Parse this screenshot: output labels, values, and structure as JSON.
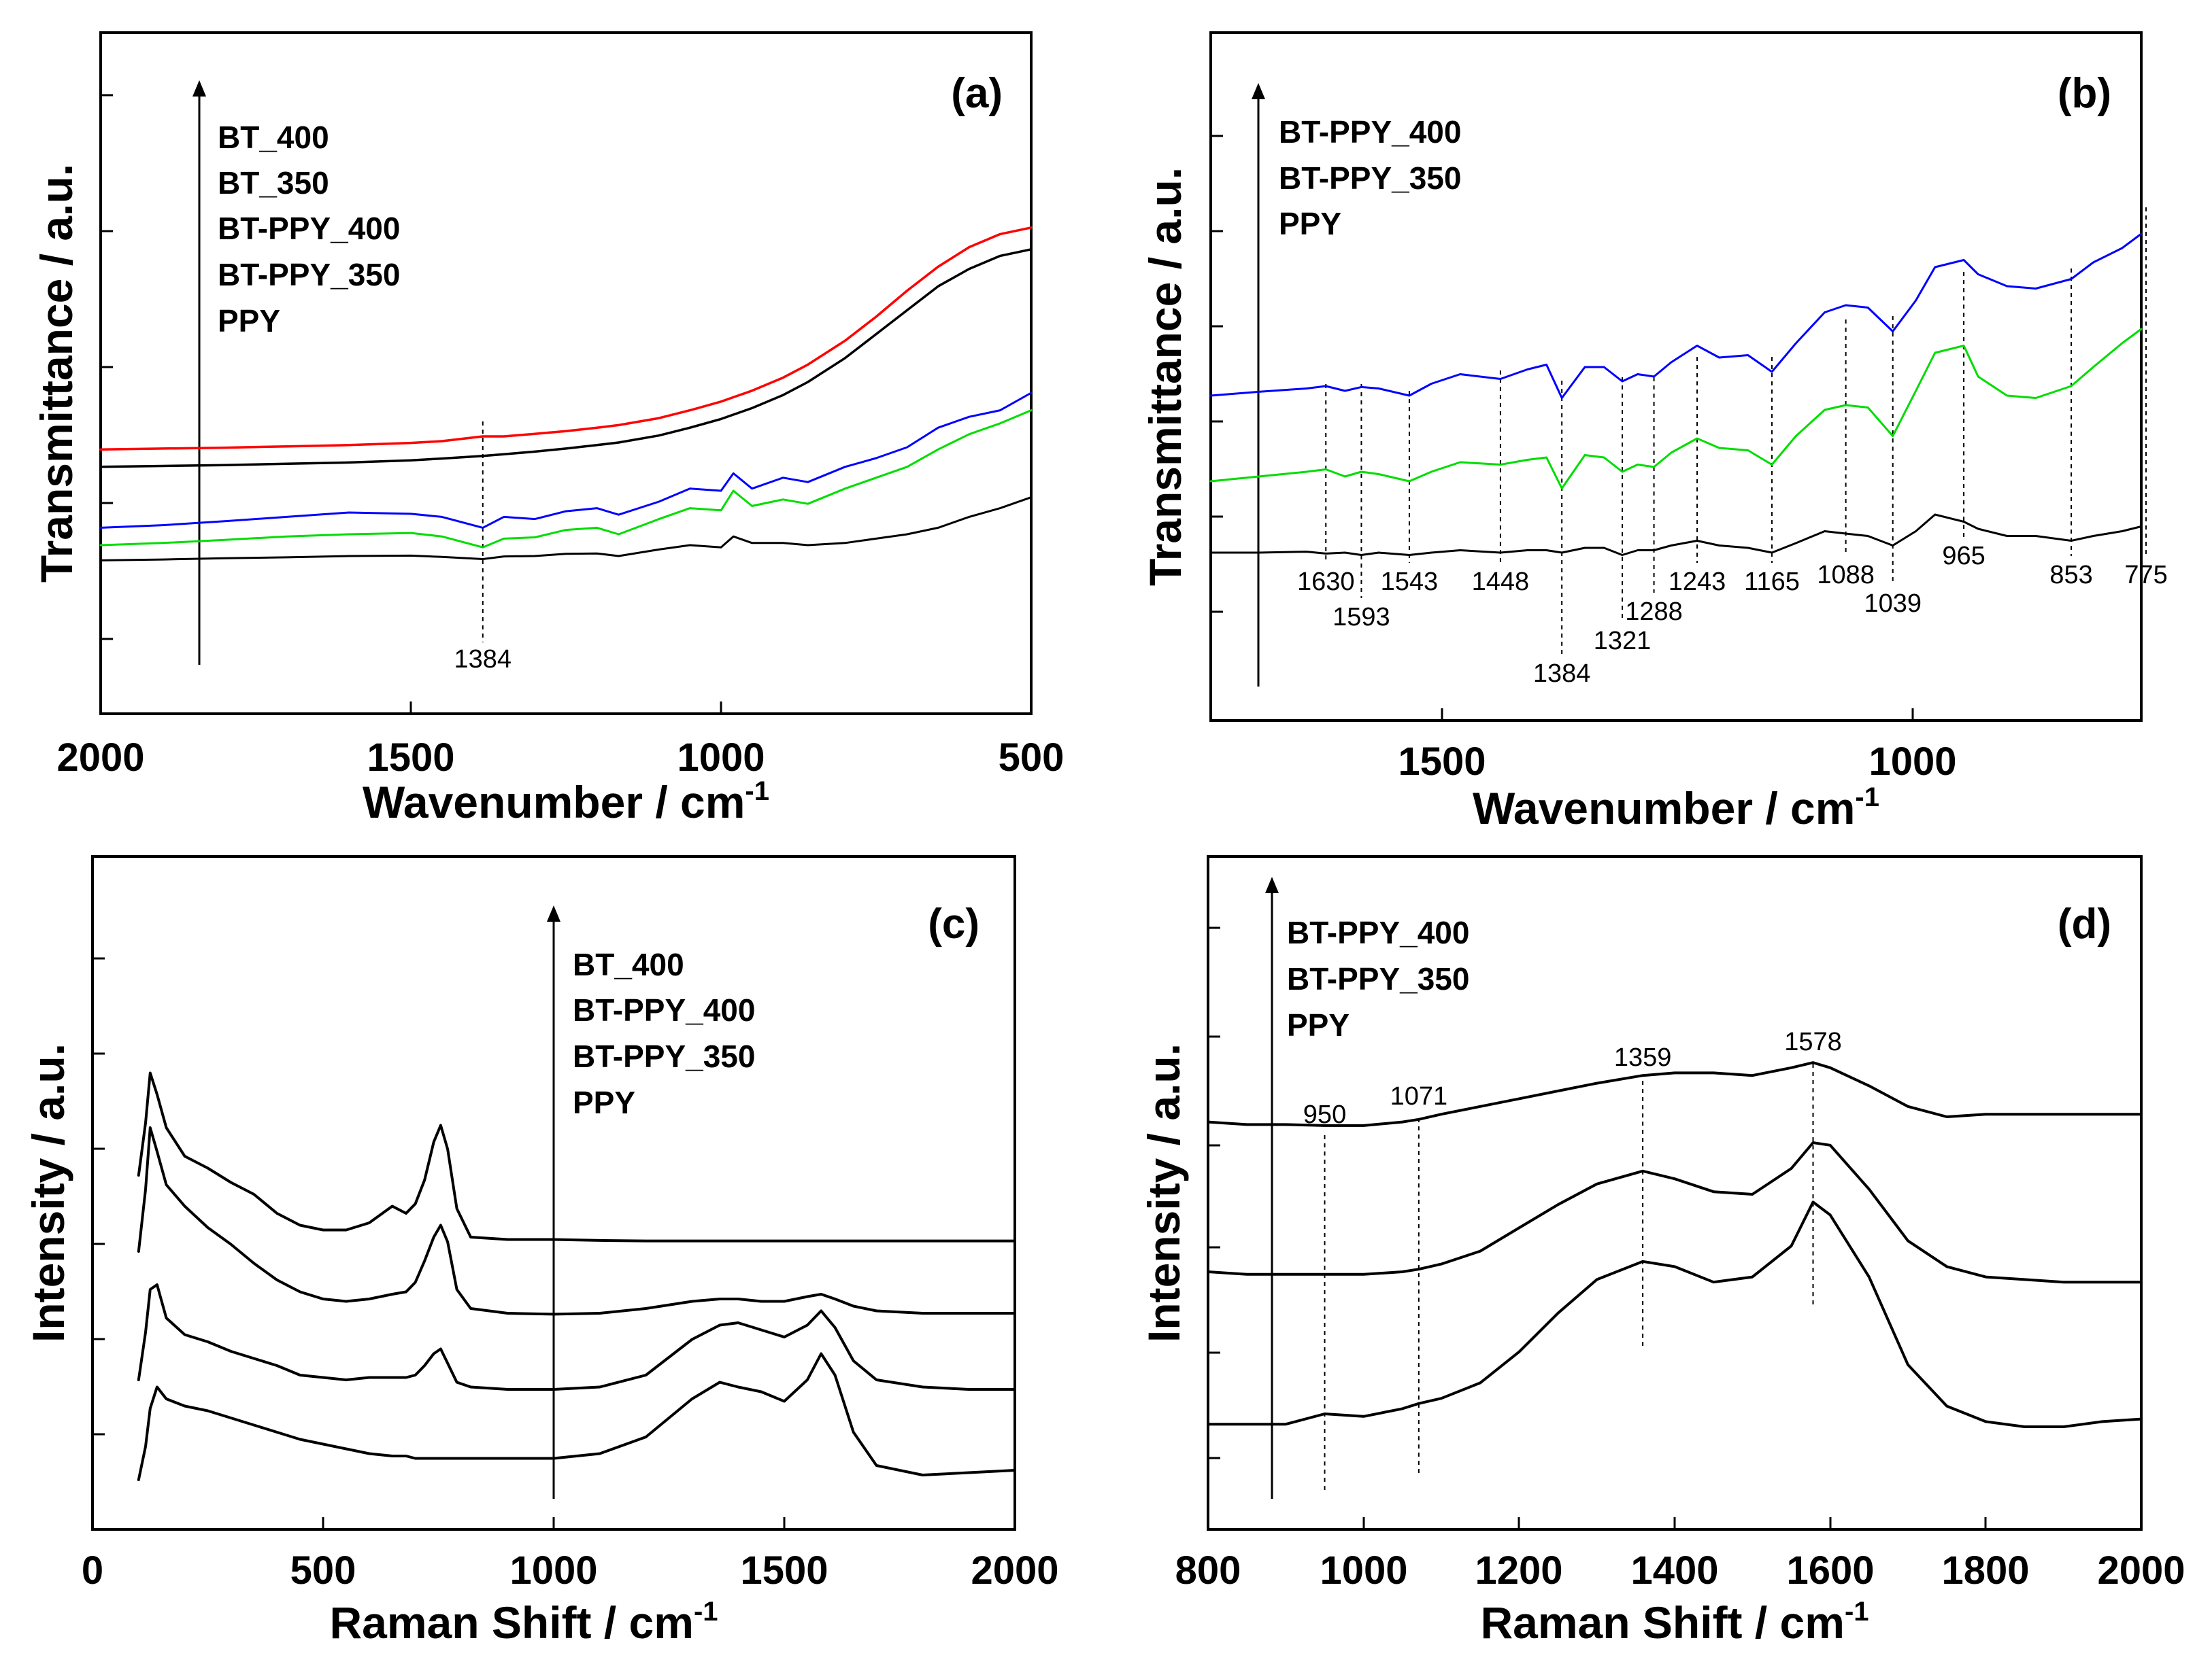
{
  "chart_data": [
    {
      "type": "line",
      "panel_label": "(a)",
      "xlabel": "Wavenumber / cm",
      "xlabel_superscript": "-1",
      "ylabel": "Transmittance / a.u.",
      "xlim": [
        2000,
        500
      ],
      "ylim": [
        0,
        100
      ],
      "xticks": [
        2000,
        1500,
        1000,
        500
      ],
      "x": [
        2000,
        1900,
        1800,
        1700,
        1600,
        1500,
        1450,
        1384,
        1350,
        1300,
        1250,
        1200,
        1165,
        1100,
        1050,
        1000,
        980,
        950,
        900,
        860,
        800,
        750,
        700,
        650,
        600,
        550,
        500
      ],
      "series": [
        {
          "name": "BT_400",
          "color": "#ff0000",
          "stroke_width": 3.5,
          "values": [
            42.0,
            42.2,
            42.4,
            42.7,
            43.0,
            43.5,
            43.9,
            45.0,
            45.0,
            45.6,
            46.2,
            47.0,
            47.6,
            49.2,
            51.0,
            53.0,
            54.0,
            55.5,
            58.5,
            61.5,
            67.0,
            72.5,
            78.5,
            84.0,
            88.5,
            91.5,
            93.0
          ]
        },
        {
          "name": "BT_350",
          "color": "#000000",
          "stroke_width": 3.5,
          "values": [
            38.0,
            38.2,
            38.4,
            38.7,
            39.0,
            39.5,
            39.9,
            40.5,
            40.9,
            41.5,
            42.2,
            43.0,
            43.6,
            45.2,
            47.0,
            49.0,
            50.0,
            51.5,
            54.5,
            57.5,
            63.0,
            68.5,
            74.0,
            79.5,
            83.5,
            86.5,
            88.0
          ]
        },
        {
          "name": "BT-PPY_400",
          "color": "#0000ff",
          "stroke_width": 3,
          "values": [
            24.0,
            24.6,
            25.5,
            26.5,
            27.5,
            27.2,
            26.5,
            24.0,
            26.5,
            26.0,
            27.8,
            28.5,
            27.0,
            30.0,
            33.0,
            32.5,
            36.5,
            33.0,
            35.5,
            34.5,
            38.0,
            40.0,
            42.5,
            47.0,
            49.5,
            51.0,
            55.0
          ]
        },
        {
          "name": "BT-PPY_350",
          "color": "#00dd00",
          "stroke_width": 3,
          "values": [
            20.0,
            20.5,
            21.2,
            22.0,
            22.5,
            22.8,
            22.0,
            19.5,
            21.5,
            21.8,
            23.5,
            24.0,
            22.5,
            26.0,
            28.5,
            28.0,
            32.5,
            29.0,
            30.5,
            29.5,
            33.0,
            35.5,
            38.0,
            42.0,
            45.5,
            48.0,
            51.0
          ]
        },
        {
          "name": "PPY",
          "color": "#000000",
          "stroke_width": 3,
          "values": [
            16.5,
            16.7,
            17.0,
            17.2,
            17.5,
            17.6,
            17.3,
            16.8,
            17.4,
            17.5,
            18.0,
            18.1,
            17.5,
            19.0,
            20.0,
            19.5,
            22.0,
            20.5,
            20.5,
            20.0,
            20.5,
            21.5,
            22.5,
            24.0,
            26.5,
            28.5,
            31.0
          ]
        }
      ],
      "legend": [
        "BT_400",
        "BT_350",
        "BT-PPY_400",
        "BT-PPY_350",
        "PPY"
      ],
      "legend_position": "top-left",
      "annotations": [
        {
          "x": 1384,
          "label": "1384"
        }
      ]
    },
    {
      "type": "line",
      "panel_label": "(b)",
      "xlabel": "Wavenumber / cm",
      "xlabel_superscript": "-1",
      "ylabel": "Transmittance / a.u.",
      "xlim": [
        1750,
        780
      ],
      "ylim": [
        0,
        100
      ],
      "xticks": [
        1500,
        1000
      ],
      "x": [
        1750,
        1700,
        1650,
        1630,
        1610,
        1593,
        1575,
        1543,
        1520,
        1490,
        1448,
        1420,
        1400,
        1384,
        1360,
        1340,
        1321,
        1305,
        1288,
        1270,
        1243,
        1220,
        1190,
        1165,
        1140,
        1110,
        1088,
        1065,
        1039,
        1015,
        995,
        965,
        950,
        920,
        890,
        853,
        830,
        800,
        780
      ],
      "series": [
        {
          "name": "BT-PPY_400",
          "color": "#0000ff",
          "stroke_width": 3,
          "values": [
            60.0,
            60.8,
            61.5,
            62.0,
            61.0,
            61.8,
            61.5,
            60.0,
            62.5,
            64.5,
            63.5,
            65.5,
            66.5,
            59.5,
            66.0,
            66.0,
            63.0,
            64.5,
            64.0,
            67.0,
            70.5,
            68.0,
            68.5,
            65.0,
            71.0,
            77.5,
            79.0,
            78.5,
            73.5,
            80.0,
            87.0,
            88.5,
            85.5,
            83.0,
            82.5,
            84.5,
            88.0,
            91.0,
            94.0
          ]
        },
        {
          "name": "BT-PPY_350",
          "color": "#00dd00",
          "stroke_width": 3,
          "values": [
            42.0,
            43.0,
            44.0,
            44.5,
            43.0,
            44.0,
            43.5,
            42.0,
            44.0,
            46.0,
            45.5,
            46.5,
            47.0,
            40.5,
            47.5,
            47.0,
            44.0,
            45.5,
            45.0,
            48.0,
            51.0,
            49.0,
            48.5,
            45.5,
            51.5,
            57.0,
            58.0,
            57.5,
            51.5,
            61.0,
            69.0,
            70.5,
            64.0,
            60.0,
            59.5,
            62.0,
            66.0,
            71.0,
            74.0
          ]
        },
        {
          "name": "PPY",
          "color": "#000000",
          "stroke_width": 3,
          "values": [
            27.0,
            27.0,
            27.2,
            26.8,
            27.0,
            26.5,
            27.0,
            26.5,
            27.0,
            27.5,
            27.0,
            27.5,
            27.5,
            27.0,
            28.0,
            28.0,
            26.5,
            27.5,
            27.5,
            28.5,
            29.5,
            28.5,
            28.0,
            27.0,
            29.0,
            31.5,
            31.0,
            30.5,
            28.5,
            31.5,
            35.0,
            33.5,
            32.0,
            30.5,
            30.5,
            29.5,
            30.5,
            31.5,
            32.5
          ]
        }
      ],
      "legend": [
        "BT-PPY_400",
        "BT-PPY_350",
        "PPY"
      ],
      "legend_position": "top-left",
      "annotations": [
        {
          "x": 1630,
          "label": "1630"
        },
        {
          "x": 1593,
          "label": "1593"
        },
        {
          "x": 1543,
          "label": "1543"
        },
        {
          "x": 1448,
          "label": "1448"
        },
        {
          "x": 1384,
          "label": "1384"
        },
        {
          "x": 1321,
          "label": "1321"
        },
        {
          "x": 1288,
          "label": "1288"
        },
        {
          "x": 1243,
          "label": "1243"
        },
        {
          "x": 1165,
          "label": "1165"
        },
        {
          "x": 1088,
          "label": "1088"
        },
        {
          "x": 1039,
          "label": "1039"
        },
        {
          "x": 965,
          "label": "965"
        },
        {
          "x": 853,
          "label": "853"
        },
        {
          "x": 775,
          "label": "775"
        }
      ]
    },
    {
      "type": "line",
      "panel_label": "(c)",
      "xlabel": "Raman Shift / cm",
      "xlabel_superscript": "-1",
      "ylabel": "Intensity / a.u.",
      "xlim": [
        0,
        2000
      ],
      "ylim": [
        0,
        100
      ],
      "xticks": [
        0,
        500,
        1000,
        1500,
        2000
      ],
      "x": [
        100,
        115,
        125,
        140,
        160,
        200,
        250,
        300,
        350,
        400,
        450,
        500,
        550,
        600,
        650,
        680,
        700,
        720,
        740,
        755,
        770,
        790,
        820,
        900,
        1000,
        1100,
        1200,
        1300,
        1360,
        1400,
        1450,
        1500,
        1550,
        1580,
        1610,
        1650,
        1700,
        1800,
        1900,
        2000
      ],
      "series": [
        {
          "name": "BT_400",
          "color": "#000000",
          "stroke_width": 4,
          "values": [
            69.0,
            80.0,
            90.5,
            86.0,
            79.0,
            73.0,
            70.5,
            67.5,
            65.0,
            61.0,
            58.5,
            57.5,
            57.5,
            59.0,
            62.5,
            61.0,
            63.0,
            68.0,
            76.0,
            79.5,
            74.5,
            62.0,
            56.0,
            55.5,
            55.5,
            55.3,
            55.2,
            55.2,
            55.2,
            55.2,
            55.2,
            55.2,
            55.2,
            55.2,
            55.2,
            55.2,
            55.2,
            55.2,
            55.2,
            55.2
          ]
        },
        {
          "name": "BT-PPY_400",
          "color": "#000000",
          "stroke_width": 4,
          "values": [
            53.0,
            66.0,
            79.0,
            74.0,
            67.0,
            62.5,
            58.0,
            54.5,
            50.5,
            47.0,
            44.5,
            43.0,
            42.5,
            43.0,
            44.0,
            44.5,
            46.5,
            51.0,
            56.0,
            58.5,
            55.0,
            45.0,
            41.0,
            40.0,
            39.8,
            40.0,
            41.0,
            42.5,
            43.0,
            43.0,
            42.5,
            42.5,
            43.5,
            44.0,
            43.0,
            41.5,
            40.5,
            40.0,
            40.0,
            40.0
          ]
        },
        {
          "name": "BT-PPY_350",
          "color": "#000000",
          "stroke_width": 4,
          "values": [
            26.0,
            36.0,
            45.0,
            46.0,
            39.0,
            35.5,
            34.0,
            32.0,
            30.5,
            29.0,
            27.0,
            26.5,
            26.0,
            26.5,
            26.5,
            26.5,
            27.0,
            29.0,
            31.5,
            32.5,
            29.5,
            25.5,
            24.5,
            24.0,
            24.0,
            24.5,
            27.0,
            34.5,
            37.5,
            38.0,
            36.5,
            35.0,
            37.5,
            40.5,
            37.0,
            30.0,
            26.0,
            24.5,
            24.0,
            24.0
          ]
        },
        {
          "name": "PPY",
          "color": "#000000",
          "stroke_width": 4,
          "values": [
            5.0,
            12.0,
            20.0,
            24.5,
            22.0,
            20.5,
            19.5,
            18.0,
            16.5,
            15.0,
            13.5,
            12.5,
            11.5,
            10.5,
            10.0,
            10.0,
            9.5,
            9.5,
            9.5,
            9.5,
            9.5,
            9.5,
            9.5,
            9.5,
            9.5,
            10.5,
            14.0,
            22.0,
            25.5,
            24.5,
            23.5,
            21.5,
            26.0,
            31.5,
            27.0,
            15.0,
            8.0,
            6.0,
            6.5,
            7.0
          ]
        }
      ],
      "legend": [
        "BT_400",
        "BT-PPY_400",
        "BT-PPY_350",
        "PPY"
      ],
      "legend_position": "top-center"
    },
    {
      "type": "line",
      "panel_label": "(d)",
      "xlabel": "Raman Shift / cm",
      "xlabel_superscript": "-1",
      "ylabel": "Intensity / a.u.",
      "xlim": [
        800,
        2000
      ],
      "ylim": [
        0,
        100
      ],
      "xticks": [
        800,
        1000,
        1200,
        1400,
        1600,
        1800,
        2000
      ],
      "x": [
        800,
        850,
        900,
        950,
        1000,
        1050,
        1071,
        1100,
        1150,
        1200,
        1250,
        1300,
        1359,
        1400,
        1450,
        1500,
        1550,
        1578,
        1600,
        1650,
        1700,
        1750,
        1800,
        1850,
        1900,
        1950,
        2000
      ],
      "series": [
        {
          "name": "BT-PPY_400",
          "color": "#000000",
          "stroke_width": 4,
          "values": [
            69.0,
            68.5,
            68.5,
            68.3,
            68.3,
            69.0,
            69.5,
            70.5,
            72.0,
            73.5,
            75.0,
            76.5,
            78.0,
            78.5,
            78.5,
            78.0,
            79.5,
            80.5,
            79.5,
            76.0,
            72.0,
            70.0,
            70.5,
            70.5,
            70.5,
            70.5,
            70.5
          ]
        },
        {
          "name": "BT-PPY_350",
          "color": "#000000",
          "stroke_width": 4,
          "values": [
            40.0,
            39.5,
            39.5,
            39.5,
            39.5,
            40.0,
            40.5,
            41.5,
            44.0,
            48.5,
            53.0,
            57.0,
            59.5,
            58.0,
            55.5,
            55.0,
            60.0,
            65.0,
            64.5,
            56.0,
            46.0,
            41.0,
            39.0,
            38.5,
            38.0,
            38.0,
            38.0
          ]
        },
        {
          "name": "PPY",
          "color": "#000000",
          "stroke_width": 4,
          "values": [
            10.5,
            10.5,
            10.5,
            12.5,
            12.0,
            13.5,
            14.5,
            15.5,
            18.5,
            24.5,
            32.0,
            38.5,
            42.0,
            41.0,
            38.0,
            39.0,
            45.0,
            53.5,
            51.0,
            39.0,
            22.0,
            14.0,
            11.0,
            10.0,
            10.0,
            11.0,
            11.5
          ]
        }
      ],
      "legend": [
        "BT-PPY_400",
        "BT-PPY_350",
        "PPY"
      ],
      "legend_position": "top-left",
      "annotations": [
        {
          "x": 950,
          "label": "950"
        },
        {
          "x": 1071,
          "label": "1071"
        },
        {
          "x": 1359,
          "label": "1359"
        },
        {
          "x": 1578,
          "label": "1578"
        }
      ]
    }
  ]
}
